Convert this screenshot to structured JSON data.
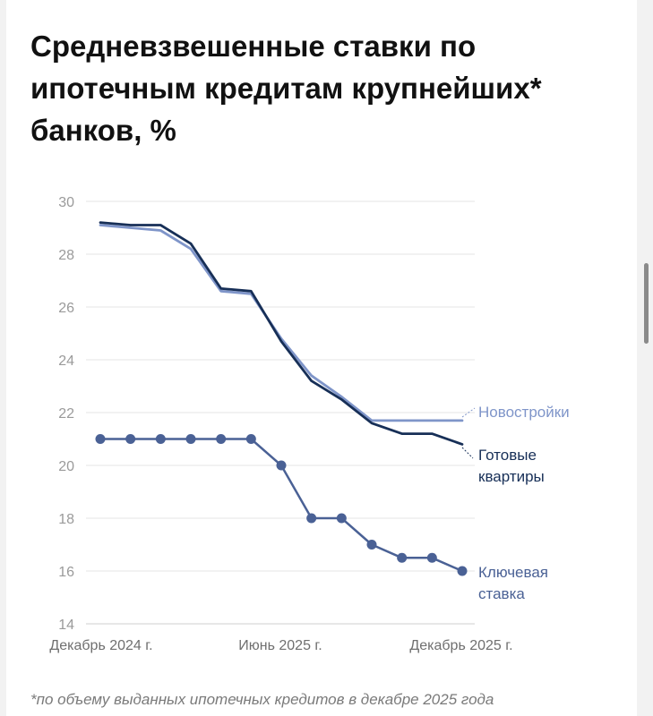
{
  "title": "Средневзвешенные ставки по ипотечным кредитам крупнейших* банков, %",
  "footnote": "*по объему выданных ипотечных кредитов в декабре 2025 года",
  "chart_data": {
    "type": "line",
    "ylim": [
      14,
      30
    ],
    "yticks": [
      "14",
      "16",
      "18",
      "20",
      "22",
      "24",
      "26",
      "28",
      "30"
    ],
    "xlabels": [
      "Декабрь 2024 г.",
      "Июнь 2025 г.",
      "Декабрь 2025 г."
    ],
    "x": [
      1,
      2,
      3,
      4,
      5,
      6,
      7,
      8,
      9,
      10,
      11,
      12,
      13
    ],
    "grid": true,
    "series": [
      {
        "name": "Новостройки",
        "color": "#7f95c9",
        "markers": false,
        "values": [
          29.1,
          29.0,
          28.9,
          28.2,
          26.6,
          26.5,
          24.8,
          23.4,
          22.6,
          21.7,
          21.7,
          21.7,
          21.7
        ]
      },
      {
        "name": "Готовые квартиры",
        "name_lines": [
          "Готовые",
          "квартиры"
        ],
        "color": "#172f57",
        "markers": false,
        "values": [
          29.2,
          29.1,
          29.1,
          28.4,
          26.7,
          26.6,
          24.7,
          23.2,
          22.5,
          21.6,
          21.2,
          21.2,
          20.8
        ]
      },
      {
        "name": "Ключевая ставка",
        "name_lines": [
          "Ключевая",
          "ставка"
        ],
        "color": "#4a6195",
        "markers": true,
        "values": [
          21,
          21,
          21,
          21,
          21,
          21,
          20,
          18,
          18,
          17,
          16.5,
          16.5,
          16
        ]
      }
    ]
  }
}
